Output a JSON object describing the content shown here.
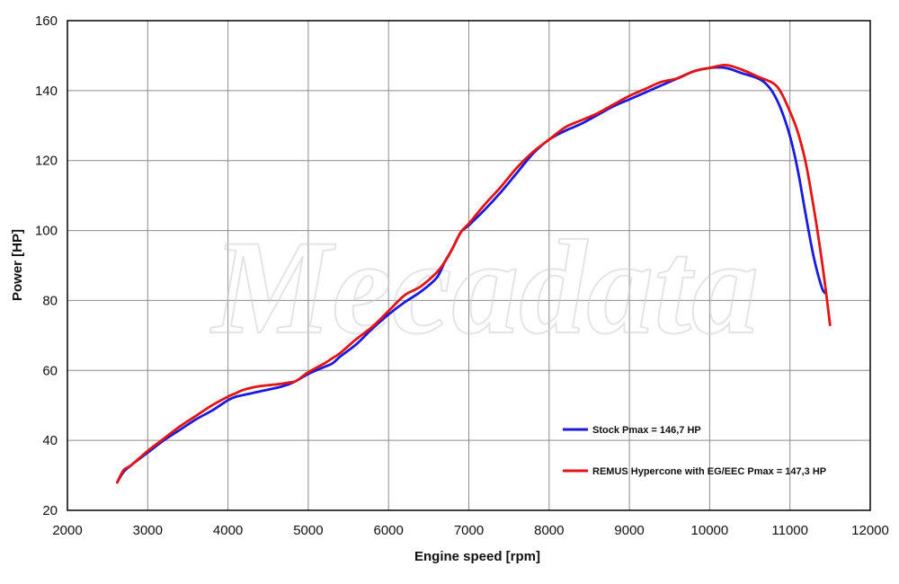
{
  "watermark": "Mecadata",
  "chart_data": {
    "type": "line",
    "title": "",
    "xlabel": "Engine speed [rpm]",
    "ylabel": "Power [HP]",
    "xlim": [
      2000,
      12000
    ],
    "ylim": [
      20,
      160
    ],
    "xticks": [
      2000,
      3000,
      4000,
      5000,
      6000,
      7000,
      8000,
      9000,
      10000,
      11000,
      12000
    ],
    "yticks": [
      20,
      40,
      60,
      80,
      100,
      120,
      140,
      160
    ],
    "grid": true,
    "legend_position": "bottom-right inside",
    "series": [
      {
        "name": "Stock Pmax = 146,7 HP",
        "color": "#1a1adc",
        "x": [
          2620,
          2700,
          2800,
          3000,
          3200,
          3400,
          3600,
          3800,
          4000,
          4100,
          4200,
          4400,
          4600,
          4750,
          4850,
          5000,
          5200,
          5300,
          5400,
          5600,
          5800,
          6000,
          6200,
          6400,
          6600,
          6700,
          6800,
          6900,
          7000,
          7200,
          7400,
          7600,
          7800,
          8000,
          8200,
          8400,
          8600,
          8800,
          9000,
          9200,
          9400,
          9600,
          9800,
          10000,
          10200,
          10400,
          10600,
          10700,
          10800,
          10900,
          11000,
          11100,
          11200,
          11300,
          11400,
          11450
        ],
        "y": [
          28,
          31,
          33,
          36.5,
          40,
          43,
          46,
          48.5,
          51.5,
          52.5,
          53,
          54,
          55,
          56,
          57,
          59,
          61,
          62,
          64,
          67.5,
          72,
          76,
          79.5,
          82.5,
          86.5,
          91,
          95,
          99.5,
          101.5,
          106,
          111,
          116.5,
          122,
          126,
          128.5,
          130.5,
          133,
          135.5,
          137.5,
          139.5,
          141.5,
          143.5,
          145.5,
          146.5,
          146.5,
          145,
          143.5,
          142,
          139,
          134,
          127,
          117,
          104,
          92,
          83.5,
          82
        ]
      },
      {
        "name": "REMUS Hypercone with EG/EEC Pmax =  147,3 HP",
        "color": "#e41414",
        "x": [
          2620,
          2700,
          2800,
          3000,
          3200,
          3400,
          3600,
          3800,
          4000,
          4100,
          4200,
          4400,
          4600,
          4750,
          4850,
          5000,
          5200,
          5300,
          5400,
          5600,
          5800,
          6000,
          6200,
          6400,
          6600,
          6700,
          6800,
          6900,
          7000,
          7200,
          7400,
          7600,
          7800,
          8000,
          8200,
          8400,
          8600,
          8800,
          9000,
          9200,
          9400,
          9600,
          9800,
          10000,
          10200,
          10400,
          10600,
          10800,
          10900,
          11000,
          11100,
          11200,
          11300,
          11400,
          11500
        ],
        "y": [
          28,
          31.5,
          33,
          37,
          40.5,
          44,
          47,
          50,
          52.5,
          53.5,
          54.5,
          55.5,
          56,
          56.5,
          57,
          59.5,
          62,
          63.5,
          65,
          69,
          72.5,
          77,
          81.5,
          84,
          88,
          91,
          95,
          99.5,
          102,
          107.5,
          112.5,
          118,
          122.5,
          126,
          129.5,
          131.5,
          133.5,
          136,
          138.5,
          140.5,
          142.5,
          143.5,
          145.5,
          146.5,
          147.3,
          146,
          144,
          142,
          139,
          134,
          128,
          119,
          106,
          91,
          73
        ]
      }
    ]
  }
}
